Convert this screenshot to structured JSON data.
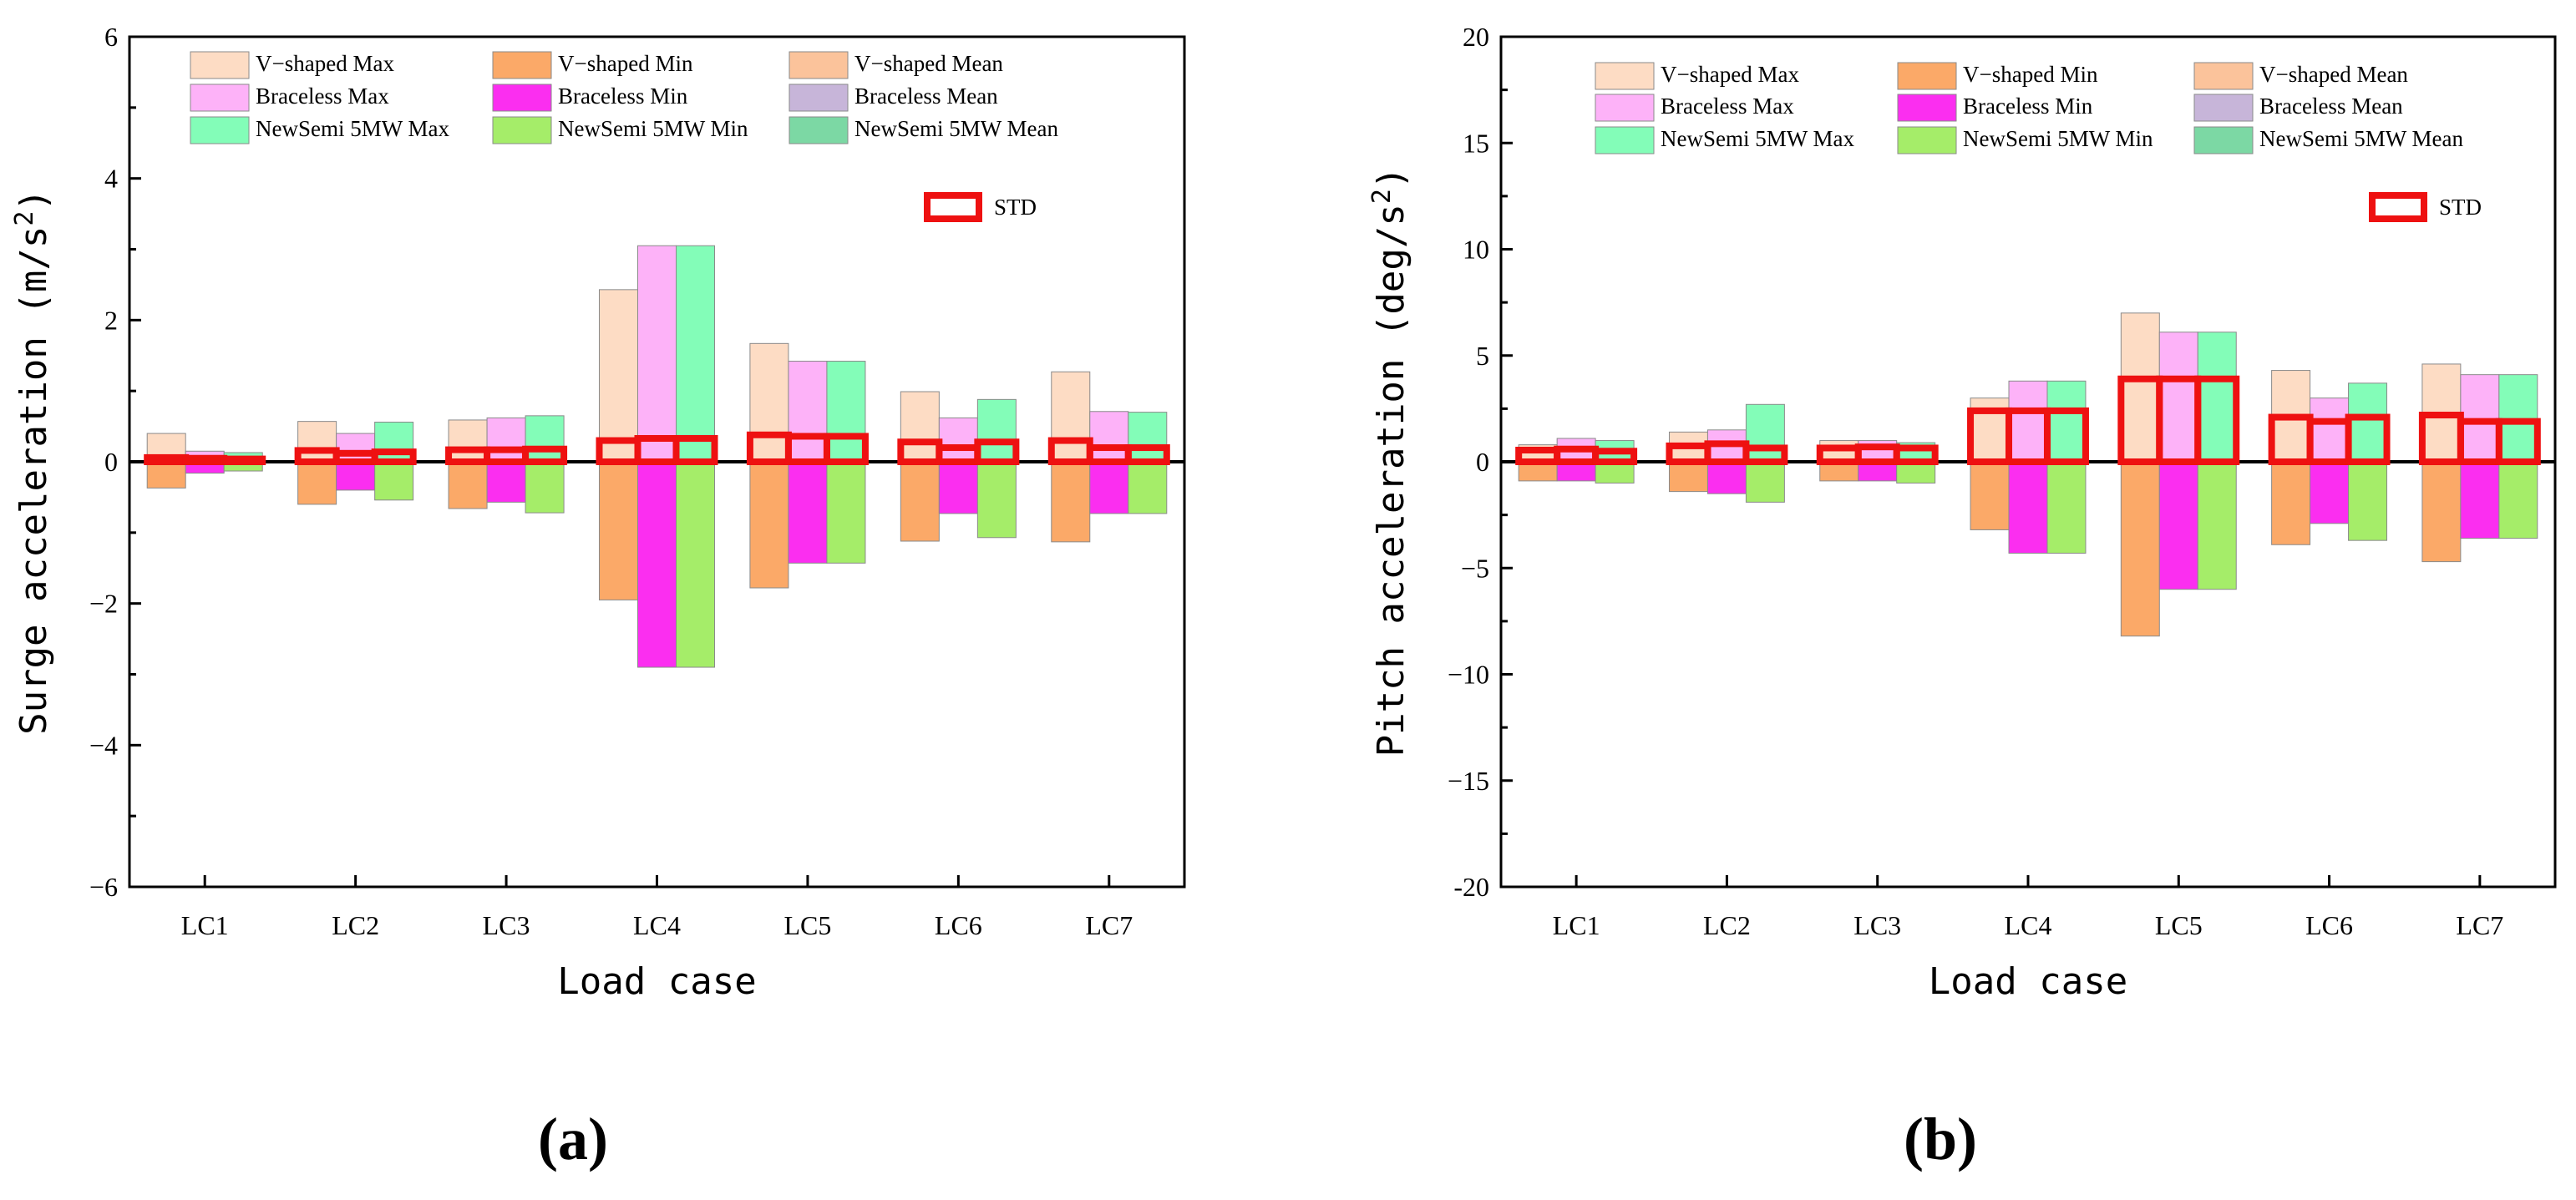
{
  "colors": {
    "vshaped_max": "#FDDCC4",
    "vshaped_min": "#FBA968",
    "vshaped_mean": "#FBC39B",
    "braceless_max": "#FDB2F8",
    "braceless_min": "#FB2EF0",
    "braceless_mean": "#C7B5D9",
    "newsemi_max": "#83FDB8",
    "newsemi_min": "#A5ED69",
    "newsemi_mean": "#7CD8A4",
    "std": "#EE1111"
  },
  "chart_data": [
    {
      "type": "bar",
      "id": "a",
      "panel_label": "(a)",
      "title": "",
      "xlabel": "Load case",
      "ylabel": "Surge acceleration (m/s²)",
      "ylabel_main": "Surge acceleration (m/s",
      "ylabel_sup": "2",
      "ylabel_end": ")",
      "ylim": [
        -6,
        6
      ],
      "yticks": [
        -6,
        -4,
        -2,
        0,
        2,
        4,
        6
      ],
      "ytick_labels": [
        "−6",
        "−4",
        "−2",
        "0",
        "2",
        "4",
        "6"
      ],
      "categories": [
        "LC1",
        "LC2",
        "LC3",
        "LC4",
        "LC5",
        "LC6",
        "LC7"
      ],
      "series": [
        {
          "name": "V−shaped Max",
          "values": [
            0.4,
            0.57,
            0.59,
            2.43,
            1.67,
            0.99,
            1.27
          ]
        },
        {
          "name": "V−shaped Min",
          "values": [
            -0.37,
            -0.6,
            -0.66,
            -1.95,
            -1.78,
            -1.12,
            -1.13
          ]
        },
        {
          "name": "V−shaped Mean",
          "values": [
            0.0,
            0.0,
            0.0,
            0.0,
            0.0,
            0.0,
            0.0
          ]
        },
        {
          "name": "Braceless Max",
          "values": [
            0.15,
            0.4,
            0.62,
            3.05,
            1.42,
            0.62,
            0.71
          ]
        },
        {
          "name": "Braceless Min",
          "values": [
            -0.16,
            -0.4,
            -0.57,
            -2.9,
            -1.43,
            -0.73,
            -0.73
          ]
        },
        {
          "name": "Braceless Mean",
          "values": [
            0.0,
            0.0,
            0.0,
            0.0,
            0.0,
            0.0,
            0.0
          ]
        },
        {
          "name": "NewSemi 5MW Max",
          "values": [
            0.13,
            0.56,
            0.65,
            3.05,
            1.42,
            0.88,
            0.7
          ]
        },
        {
          "name": "NewSemi 5MW Min",
          "values": [
            -0.13,
            -0.54,
            -0.72,
            -2.9,
            -1.43,
            -1.07,
            -0.73
          ]
        },
        {
          "name": "NewSemi 5MW Mean",
          "values": [
            0.0,
            0.0,
            0.0,
            0.0,
            0.0,
            0.0,
            0.0
          ]
        }
      ],
      "std": {
        "name": "STD",
        "vshaped": [
          0.06,
          0.16,
          0.17,
          0.3,
          0.38,
          0.28,
          0.3
        ],
        "braceless": [
          0.05,
          0.12,
          0.17,
          0.33,
          0.36,
          0.2,
          0.2
        ],
        "newsemi": [
          0.04,
          0.14,
          0.18,
          0.33,
          0.36,
          0.28,
          0.2
        ]
      },
      "legend_position": "top"
    },
    {
      "type": "bar",
      "id": "b",
      "panel_label": "(b)",
      "title": "",
      "xlabel": "Load case",
      "ylabel": "Pitch acceleration (deg/s²)",
      "ylabel_main": "Pitch acceleration (deg/s",
      "ylabel_sup": "2",
      "ylabel_end": ")",
      "ylim": [
        -20,
        20
      ],
      "yticks": [
        -20,
        -15,
        -10,
        -5,
        0,
        5,
        10,
        15,
        20
      ],
      "ytick_labels": [
        "-20",
        "−15",
        "−10",
        "−5",
        "0",
        "5",
        "10",
        "15",
        "20"
      ],
      "categories": [
        "LC1",
        "LC2",
        "LC3",
        "LC4",
        "LC5",
        "LC6",
        "LC7"
      ],
      "series": [
        {
          "name": "V−shaped Max",
          "values": [
            0.8,
            1.4,
            1.0,
            3.0,
            7.0,
            4.3,
            4.6
          ]
        },
        {
          "name": "V−shaped Min",
          "values": [
            -0.9,
            -1.4,
            -0.9,
            -3.2,
            -8.2,
            -3.9,
            -4.7
          ]
        },
        {
          "name": "V−shaped Mean",
          "values": [
            0.0,
            0.0,
            0.0,
            0.0,
            0.0,
            0.0,
            0.0
          ]
        },
        {
          "name": "Braceless Max",
          "values": [
            1.1,
            1.5,
            1.0,
            3.8,
            6.1,
            3.0,
            4.1
          ]
        },
        {
          "name": "Braceless Min",
          "values": [
            -0.9,
            -1.5,
            -0.9,
            -4.3,
            -6.0,
            -2.9,
            -3.6
          ]
        },
        {
          "name": "Braceless Mean",
          "values": [
            0.0,
            0.0,
            0.0,
            0.0,
            0.0,
            0.0,
            0.0
          ]
        },
        {
          "name": "NewSemi 5MW Max",
          "values": [
            1.0,
            2.7,
            0.9,
            3.8,
            6.1,
            3.7,
            4.1
          ]
        },
        {
          "name": "NewSemi 5MW Min",
          "values": [
            -1.0,
            -1.9,
            -1.0,
            -4.3,
            -6.0,
            -3.7,
            -3.6
          ]
        },
        {
          "name": "NewSemi 5MW Mean",
          "values": [
            0.0,
            0.0,
            0.0,
            0.0,
            0.0,
            0.0,
            0.0
          ]
        }
      ],
      "std": {
        "name": "STD",
        "vshaped": [
          0.55,
          0.75,
          0.65,
          2.4,
          3.9,
          2.1,
          2.2
        ],
        "braceless": [
          0.6,
          0.85,
          0.7,
          2.4,
          3.9,
          1.9,
          1.9
        ],
        "newsemi": [
          0.5,
          0.65,
          0.65,
          2.4,
          3.9,
          2.1,
          1.9
        ]
      },
      "legend_position": "top"
    }
  ]
}
